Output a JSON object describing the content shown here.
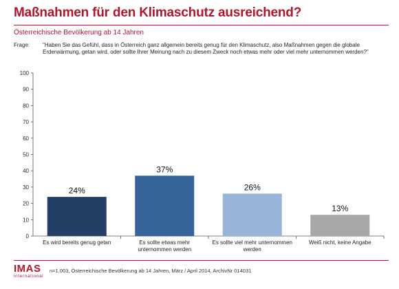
{
  "header": {
    "title": "Maßnahmen für den Klimaschutz ausreichend?",
    "subtitle": "Österreichische Bevölkerung ab 14 Jahren",
    "question_label": "Frage:",
    "question_text": "\"Haben Sie das Gefühl, dass in Österreich ganz allgemein bereits genug für den Klimaschutz, also Maßnahmen gegen die globale Erderwärmung, getan wird, oder sollte Ihrer Meinung nach zu diesem Zweck noch etwas mehr oder viel mehr unternommen werden?\""
  },
  "chart_data": {
    "type": "bar",
    "categories": [
      [
        "Es wird bereits genug getan"
      ],
      [
        "Es sollte etwas mehr",
        "unternommen werden"
      ],
      [
        "Es sollte viel mehr unternommen",
        "werden"
      ],
      [
        "Weiß nicht, keine Angabe"
      ]
    ],
    "values": [
      24,
      37,
      26,
      13
    ],
    "value_labels": [
      "24%",
      "37%",
      "26%",
      "13%"
    ],
    "colors": [
      "#233f66",
      "#36649a",
      "#96b5d9",
      "#a8a8a8"
    ],
    "ylim": [
      0,
      100
    ],
    "yticks": [
      0,
      10,
      20,
      30,
      40,
      50,
      60,
      70,
      80,
      90,
      100
    ],
    "grid": false,
    "legend": "none"
  },
  "footer": {
    "logo_text": "IMAS",
    "logo_sub": "international",
    "footnote": "n=1.003, Österreichische Bevölkerung ab 14 Jahren, März / April 2014, ArchivNr 014031"
  }
}
